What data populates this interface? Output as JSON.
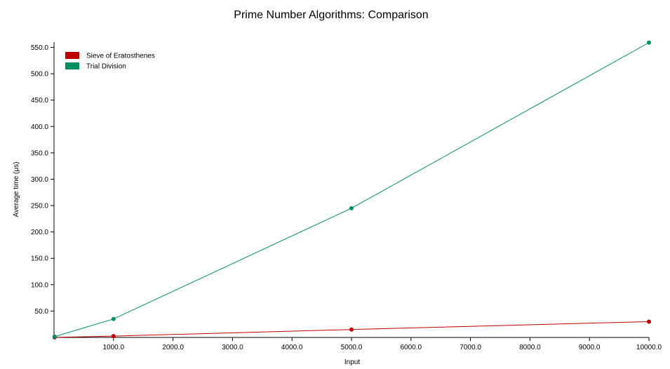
{
  "chart_data": {
    "type": "line",
    "title": "Prime Number Algorithms: Comparison",
    "xlabel": "Input",
    "ylabel": "Average time (μs)",
    "xlim": [
      0,
      10000
    ],
    "ylim": [
      0,
      560
    ],
    "x_ticks": [
      1000,
      2000,
      3000,
      4000,
      5000,
      6000,
      7000,
      8000,
      9000,
      10000
    ],
    "x_tick_labels": [
      "1000.0",
      "2000.0",
      "3000.0",
      "4000.0",
      "5000.0",
      "6000.0",
      "7000.0",
      "8000.0",
      "9000.0",
      "10000.0"
    ],
    "y_ticks": [
      50,
      100,
      150,
      200,
      250,
      300,
      350,
      400,
      450,
      500,
      550
    ],
    "y_tick_labels": [
      "50.0",
      "100.0",
      "150.0",
      "200.0",
      "250.0",
      "300.0",
      "350.0",
      "400.0",
      "450.0",
      "500.0",
      "550.0"
    ],
    "grid": false,
    "legend_position": "top-left",
    "x": [
      10,
      1000,
      5000,
      10000
    ],
    "series": [
      {
        "name": "Sieve of Eratosthenes",
        "color": "#c00000",
        "values": [
          0.2,
          2.5,
          15,
          30
        ]
      },
      {
        "name": "Trial Division",
        "color": "#009060",
        "values": [
          1.5,
          35,
          245,
          559
        ]
      }
    ]
  }
}
